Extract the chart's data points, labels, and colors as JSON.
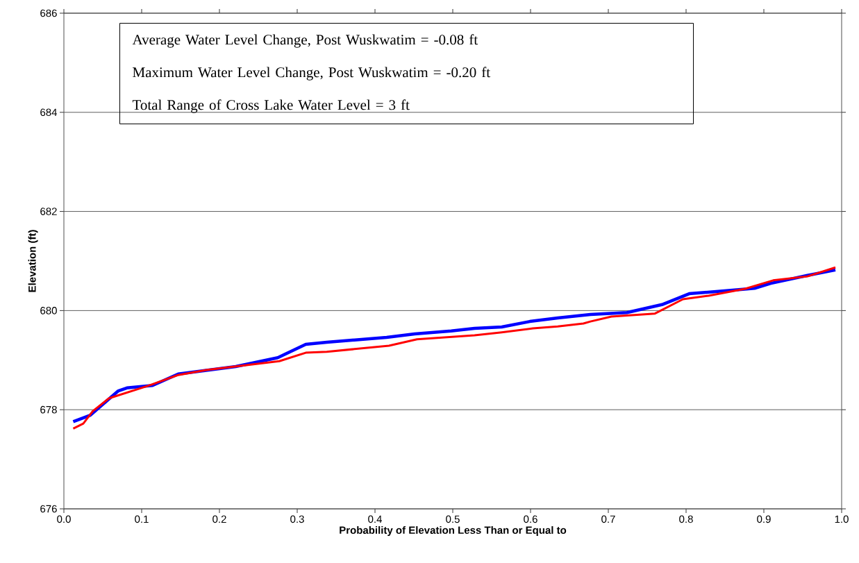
{
  "chart_data": {
    "type": "line",
    "xlabel": "Probability of Elevation Less Than or Equal to",
    "ylabel": "Elevation  (ft)",
    "xlim": [
      0,
      1
    ],
    "xticks": [
      {
        "value": 0,
        "label": "0.0"
      },
      0.1,
      0.2,
      0.3,
      0.4,
      0.5,
      0.6,
      0.7,
      0.8,
      0.9,
      {
        "value": 1,
        "label": "1.0"
      }
    ],
    "ylim": [
      676,
      686
    ],
    "yticks": [
      676,
      678,
      680,
      682,
      684,
      686
    ],
    "grid": "y",
    "legend": false,
    "marker": "none",
    "line_style": "solid",
    "annotations": [
      "Average Water Level Change, Post Wuskwatim =   -0.08 ft",
      "Maximum Water Level Change, Post Wuskwatim = -0.20 ft",
      "Total Range of Cross Lake Water Level = 3 ft"
    ],
    "series": [
      {
        "color": "#0000ff",
        "x": [
          0.012,
          0.034,
          0.07,
          0.081,
          0.114,
          0.147,
          0.221,
          0.275,
          0.311,
          0.338,
          0.415,
          0.451,
          0.498,
          0.528,
          0.563,
          0.599,
          0.635,
          0.677,
          0.724,
          0.769,
          0.804,
          0.873,
          0.888,
          0.909,
          0.956,
          0.992
        ],
        "values": [
          677.76,
          677.89,
          678.38,
          678.44,
          678.49,
          678.72,
          678.87,
          679.05,
          679.32,
          679.36,
          679.46,
          679.53,
          679.59,
          679.64,
          679.67,
          679.78,
          679.85,
          679.92,
          679.96,
          680.12,
          680.34,
          680.43,
          680.45,
          680.55,
          680.71,
          680.82
        ]
      },
      {
        "color": "#ff0000",
        "x": [
          0.012,
          0.025,
          0.037,
          0.058,
          0.108,
          0.147,
          0.183,
          0.277,
          0.311,
          0.338,
          0.418,
          0.454,
          0.528,
          0.563,
          0.603,
          0.635,
          0.668,
          0.677,
          0.704,
          0.76,
          0.796,
          0.829,
          0.876,
          0.912,
          0.956,
          0.992
        ],
        "values": [
          677.62,
          677.72,
          677.97,
          678.23,
          678.48,
          678.7,
          678.8,
          678.98,
          679.15,
          679.17,
          679.29,
          679.42,
          679.5,
          679.56,
          679.64,
          679.68,
          679.74,
          679.78,
          679.88,
          679.94,
          680.23,
          680.3,
          680.44,
          680.61,
          680.69,
          680.87
        ]
      }
    ]
  }
}
